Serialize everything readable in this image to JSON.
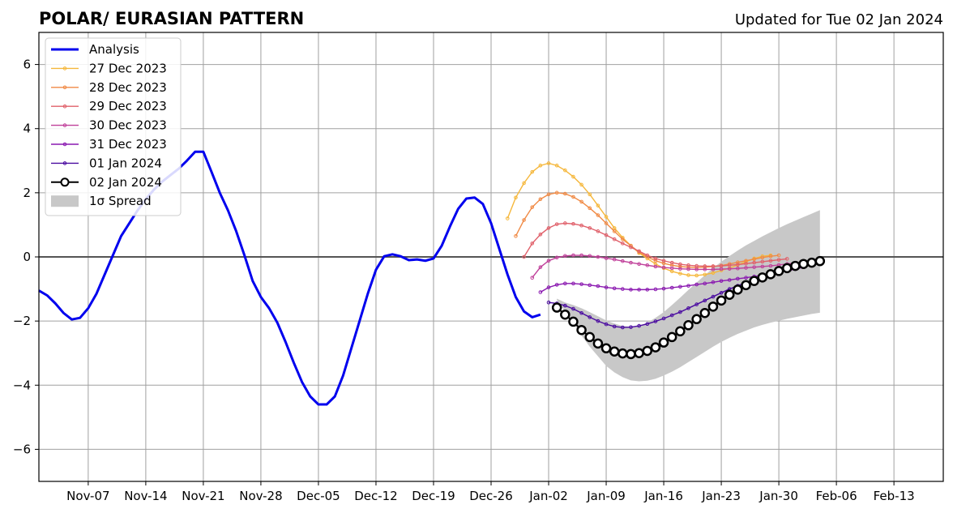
{
  "chart_data": {
    "type": "line",
    "title": "POLAR/ EURASIAN  PATTERN",
    "subtitle": "Updated for Tue 02 Jan 2024",
    "xlabel": "",
    "ylabel": "",
    "xlim": [
      "2023-11-01",
      "2024-02-19"
    ],
    "ylim": [
      -7,
      7
    ],
    "x_ticks": [
      "Nov-07",
      "Nov-14",
      "Nov-21",
      "Nov-28",
      "Dec-05",
      "Dec-12",
      "Dec-19",
      "Dec-26",
      "Jan-02",
      "Jan-09",
      "Jan-16",
      "Jan-23",
      "Jan-30",
      "Feb-06",
      "Feb-13"
    ],
    "y_ticks": [
      -6,
      -4,
      -2,
      0,
      2,
      4,
      6
    ],
    "grid": true,
    "legend_position": "top-left",
    "colors": {
      "analysis": "#0000ee",
      "spread": "#c8c8c8",
      "zero_line": "#555555",
      "grid": "#a0a0a0"
    },
    "analysis": {
      "name": "Analysis",
      "start": "2023-11-01",
      "values": [
        -1.05,
        -1.2,
        -1.45,
        -1.75,
        -1.95,
        -1.9,
        -1.6,
        -1.15,
        -0.55,
        0.05,
        0.65,
        1.05,
        1.45,
        1.8,
        2.1,
        2.35,
        2.55,
        2.75,
        3.0,
        3.28,
        3.28,
        2.65,
        2.0,
        1.45,
        0.8,
        0.05,
        -0.75,
        -1.25,
        -1.6,
        -2.05,
        -2.65,
        -3.3,
        -3.9,
        -4.35,
        -4.6,
        -4.6,
        -4.35,
        -3.7,
        -2.85,
        -2.0,
        -1.15,
        -0.4,
        0.02,
        0.08,
        0.02,
        -0.1,
        -0.08,
        -0.12,
        -0.05,
        0.35,
        0.95,
        1.5,
        1.82,
        1.85,
        1.65,
        1.05,
        0.25,
        -0.55,
        -1.25,
        -1.7,
        -1.88,
        -1.8
      ]
    },
    "forecasts": [
      {
        "name": "27 Dec 2023",
        "color": "#f5b73b",
        "start": "2023-12-28",
        "values": [
          1.2,
          1.85,
          2.3,
          2.65,
          2.85,
          2.92,
          2.85,
          2.7,
          2.5,
          2.25,
          1.95,
          1.6,
          1.25,
          0.9,
          0.6,
          0.35,
          0.12,
          -0.05,
          -0.22,
          -0.35,
          -0.45,
          -0.52,
          -0.57,
          -0.58,
          -0.55,
          -0.5,
          -0.42,
          -0.35,
          -0.25,
          -0.15,
          -0.05,
          0.02,
          0.05
        ]
      },
      {
        "name": "28 Dec 2023",
        "color": "#f08a45",
        "start": "2023-12-29",
        "values": [
          0.65,
          1.15,
          1.55,
          1.8,
          1.95,
          2.0,
          1.97,
          1.87,
          1.72,
          1.52,
          1.3,
          1.05,
          0.8,
          0.55,
          0.35,
          0.15,
          0.0,
          -0.12,
          -0.2,
          -0.26,
          -0.3,
          -0.32,
          -0.33,
          -0.32,
          -0.3,
          -0.27,
          -0.22,
          -0.17,
          -0.12,
          -0.07,
          -0.02,
          0.02,
          0.05
        ]
      },
      {
        "name": "29 Dec 2023",
        "color": "#e0606a",
        "start": "2023-12-30",
        "values": [
          0.0,
          0.42,
          0.7,
          0.9,
          1.02,
          1.05,
          1.03,
          0.98,
          0.9,
          0.8,
          0.68,
          0.55,
          0.42,
          0.3,
          0.18,
          0.05,
          -0.05,
          -0.12,
          -0.18,
          -0.23,
          -0.26,
          -0.28,
          -0.29,
          -0.29,
          -0.28,
          -0.26,
          -0.24,
          -0.21,
          -0.18,
          -0.15,
          -0.12,
          -0.09,
          -0.06
        ]
      },
      {
        "name": "30 Dec 2023",
        "color": "#c0409a",
        "start": "2023-12-31",
        "values": [
          -0.65,
          -0.32,
          -0.12,
          -0.02,
          0.03,
          0.05,
          0.05,
          0.03,
          0.0,
          -0.04,
          -0.08,
          -0.13,
          -0.18,
          -0.22,
          -0.26,
          -0.3,
          -0.33,
          -0.35,
          -0.37,
          -0.38,
          -0.39,
          -0.39,
          -0.39,
          -0.38,
          -0.37,
          -0.36,
          -0.34,
          -0.32,
          -0.3,
          -0.28,
          -0.25,
          -0.22,
          -0.19
        ]
      },
      {
        "name": "31 Dec 2023",
        "color": "#8a18b0",
        "start": "2024-01-01",
        "values": [
          -1.1,
          -0.95,
          -0.87,
          -0.83,
          -0.83,
          -0.85,
          -0.88,
          -0.91,
          -0.95,
          -0.98,
          -1.0,
          -1.02,
          -1.02,
          -1.02,
          -1.01,
          -0.99,
          -0.96,
          -0.93,
          -0.9,
          -0.86,
          -0.83,
          -0.79,
          -0.75,
          -0.72,
          -0.68,
          -0.65,
          -0.61,
          -0.57,
          -0.53,
          -0.48,
          -0.43,
          -0.38,
          -0.32
        ]
      },
      {
        "name": "01 Jan 2024",
        "color": "#4a0aa0",
        "start": "2024-01-02",
        "values": [
          -1.42,
          -1.45,
          -1.52,
          -1.62,
          -1.75,
          -1.88,
          -2.0,
          -2.1,
          -2.17,
          -2.2,
          -2.19,
          -2.15,
          -2.09,
          -2.01,
          -1.92,
          -1.82,
          -1.72,
          -1.6,
          -1.48,
          -1.36,
          -1.24,
          -1.12,
          -1.0,
          -0.9,
          -0.8,
          -0.71,
          -0.62,
          -0.53,
          -0.44,
          -0.36,
          -0.28,
          -0.2,
          -0.12
        ]
      },
      {
        "name": "02 Jan 2024",
        "color": "#000000",
        "start": "2024-01-03",
        "values": [
          -1.58,
          -1.8,
          -2.02,
          -2.28,
          -2.5,
          -2.7,
          -2.85,
          -2.95,
          -3.01,
          -3.03,
          -3.0,
          -2.93,
          -2.82,
          -2.67,
          -2.5,
          -2.32,
          -2.13,
          -1.94,
          -1.75,
          -1.55,
          -1.36,
          -1.18,
          -1.02,
          -0.88,
          -0.75,
          -0.64,
          -0.54,
          -0.44,
          -0.35,
          -0.28,
          -0.22,
          -0.18,
          -0.13
        ]
      }
    ],
    "spread": {
      "name": "1σ Spread",
      "start": "2024-01-03",
      "lower": [
        -1.35,
        -1.7,
        -2.05,
        -2.45,
        -2.8,
        -3.1,
        -3.4,
        -3.6,
        -3.75,
        -3.85,
        -3.88,
        -3.86,
        -3.8,
        -3.7,
        -3.58,
        -3.44,
        -3.28,
        -3.12,
        -2.96,
        -2.8,
        -2.65,
        -2.52,
        -2.4,
        -2.3,
        -2.2,
        -2.12,
        -2.05,
        -1.99,
        -1.93,
        -1.88,
        -1.83,
        -1.78,
        -1.74
      ],
      "upper": [
        -1.3,
        -1.42,
        -1.5,
        -1.6,
        -1.72,
        -1.85,
        -1.98,
        -2.08,
        -2.15,
        -2.18,
        -2.15,
        -2.05,
        -1.9,
        -1.72,
        -1.5,
        -1.27,
        -1.03,
        -0.8,
        -0.57,
        -0.35,
        -0.15,
        0.03,
        0.2,
        0.36,
        0.5,
        0.64,
        0.77,
        0.9,
        1.02,
        1.13,
        1.24,
        1.35,
        1.46
      ]
    }
  }
}
